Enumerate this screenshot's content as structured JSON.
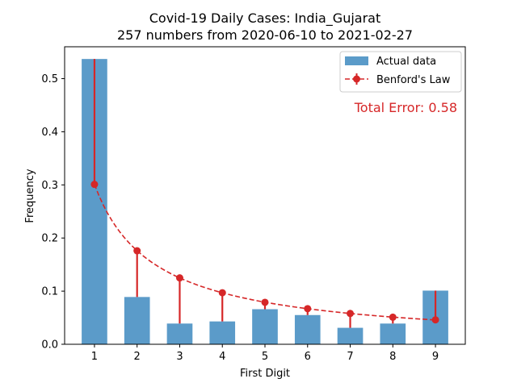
{
  "chart_data": {
    "type": "bar",
    "title": "Covid-19 Daily Cases: India_Gujarat",
    "subtitle": "257 numbers from 2020-06-10 to 2021-02-27",
    "xlabel": "First Digit",
    "ylabel": "Frequency",
    "categories": [
      "1",
      "2",
      "3",
      "4",
      "5",
      "6",
      "7",
      "8",
      "9"
    ],
    "ylim": [
      0,
      0.56
    ],
    "yticks": [
      "0.0",
      "0.1",
      "0.2",
      "0.3",
      "0.4",
      "0.5"
    ],
    "grid": false,
    "legend_position": "top-right",
    "series": [
      {
        "name": "Actual data",
        "type": "bar",
        "color": "#5b9bc9",
        "values": [
          0.537,
          0.089,
          0.039,
          0.043,
          0.066,
          0.055,
          0.031,
          0.039,
          0.101
        ]
      },
      {
        "name": "Benford's Law",
        "type": "line",
        "style": "dashed",
        "marker": "circle",
        "color": "#d62728",
        "values": [
          0.301,
          0.176,
          0.125,
          0.097,
          0.079,
          0.067,
          0.058,
          0.051,
          0.046
        ]
      }
    ],
    "annotation": "Total Error: 0.58",
    "annotation_color": "#d62728"
  }
}
